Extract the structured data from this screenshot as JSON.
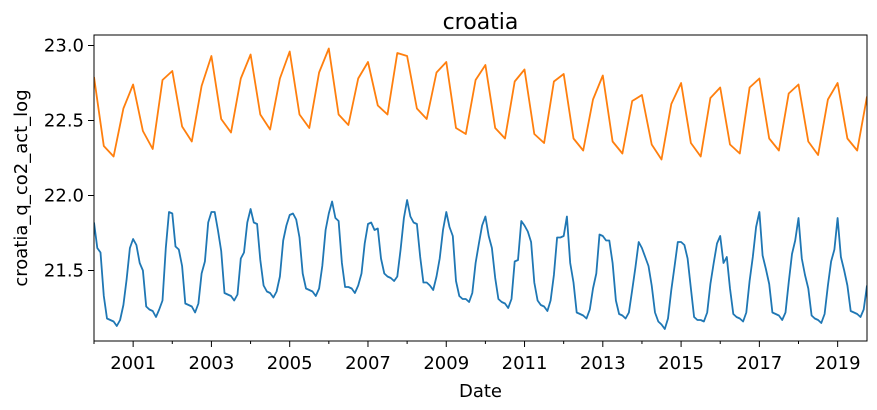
{
  "chart_data": {
    "type": "line",
    "title": "croatia",
    "xlabel": "Date",
    "ylabel": "croatia_q_co2_act_log",
    "xlim": [
      "2000-01-01",
      "2019-10-01"
    ],
    "ylim": [
      21.03,
      23.07
    ],
    "x_ticks": [
      "2001",
      "2003",
      "2005",
      "2007",
      "2009",
      "2011",
      "2013",
      "2015",
      "2017",
      "2019"
    ],
    "y_ticks": [
      "21.5",
      "22.0",
      "22.5",
      "23.0"
    ],
    "grid": false,
    "legend": "none",
    "series": [
      {
        "frequency": "monthly",
        "start": "2000-01",
        "color": "#1f77b4",
        "values": [
          21.82,
          21.65,
          21.62,
          21.33,
          21.18,
          21.17,
          21.16,
          21.13,
          21.17,
          21.27,
          21.44,
          21.65,
          21.71,
          21.67,
          21.55,
          21.5,
          21.26,
          21.24,
          21.23,
          21.19,
          21.24,
          21.3,
          21.65,
          21.89,
          21.88,
          21.66,
          21.64,
          21.53,
          21.28,
          21.27,
          21.26,
          21.22,
          21.28,
          21.48,
          21.56,
          21.82,
          21.89,
          21.89,
          21.77,
          21.63,
          21.35,
          21.34,
          21.33,
          21.3,
          21.34,
          21.58,
          21.62,
          21.82,
          21.91,
          21.82,
          21.81,
          21.57,
          21.4,
          21.36,
          21.35,
          21.32,
          21.36,
          21.46,
          21.7,
          21.8,
          21.87,
          21.88,
          21.84,
          21.72,
          21.48,
          21.38,
          21.37,
          21.36,
          21.33,
          21.38,
          21.53,
          21.77,
          21.88,
          21.96,
          21.85,
          21.83,
          21.55,
          21.39,
          21.39,
          21.38,
          21.35,
          21.4,
          21.48,
          21.68,
          21.81,
          21.82,
          21.77,
          21.78,
          21.58,
          21.48,
          21.46,
          21.45,
          21.43,
          21.46,
          21.64,
          21.85,
          21.97,
          21.86,
          21.82,
          21.81,
          21.59,
          21.42,
          21.42,
          21.4,
          21.37,
          21.46,
          21.58,
          21.77,
          21.89,
          21.79,
          21.73,
          21.43,
          21.33,
          21.31,
          21.31,
          21.29,
          21.35,
          21.55,
          21.68,
          21.8,
          21.86,
          21.73,
          21.65,
          21.45,
          21.31,
          21.29,
          21.28,
          21.25,
          21.31,
          21.56,
          21.57,
          21.83,
          21.8,
          21.76,
          21.69,
          21.42,
          21.3,
          21.27,
          21.26,
          21.23,
          21.3,
          21.47,
          21.72,
          21.72,
          21.73,
          21.86,
          21.55,
          21.42,
          21.22,
          21.21,
          21.2,
          21.18,
          21.24,
          21.38,
          21.48,
          21.74,
          21.73,
          21.7,
          21.7,
          21.55,
          21.3,
          21.21,
          21.2,
          21.18,
          21.22,
          21.37,
          21.52,
          21.69,
          21.65,
          21.59,
          21.53,
          21.4,
          21.22,
          21.16,
          21.14,
          21.11,
          21.18,
          21.37,
          21.53,
          21.69,
          21.69,
          21.67,
          21.58,
          21.38,
          21.19,
          21.17,
          21.17,
          21.16,
          21.22,
          21.41,
          21.55,
          21.68,
          21.73,
          21.55,
          21.59,
          21.38,
          21.21,
          21.19,
          21.18,
          21.16,
          21.22,
          21.43,
          21.59,
          21.79,
          21.89,
          21.6,
          21.51,
          21.41,
          21.22,
          21.21,
          21.2,
          21.17,
          21.22,
          21.42,
          21.61,
          21.7,
          21.85,
          21.58,
          21.47,
          21.38,
          21.2,
          21.18,
          21.17,
          21.15,
          21.21,
          21.4,
          21.56,
          21.64,
          21.85,
          21.59,
          21.5,
          21.4,
          21.23,
          21.22,
          21.21,
          21.19,
          21.24,
          21.4
        ]
      },
      {
        "frequency": "quarterly",
        "start": "2000-Q1",
        "color": "#ff7f0e",
        "values": [
          22.79,
          22.33,
          22.26,
          22.58,
          22.74,
          22.43,
          22.31,
          22.77,
          22.83,
          22.46,
          22.36,
          22.73,
          22.93,
          22.51,
          22.42,
          22.78,
          22.94,
          22.54,
          22.44,
          22.78,
          22.96,
          22.54,
          22.45,
          22.82,
          22.98,
          22.54,
          22.47,
          22.78,
          22.89,
          22.6,
          22.54,
          22.95,
          22.93,
          22.58,
          22.51,
          22.82,
          22.89,
          22.45,
          22.41,
          22.77,
          22.87,
          22.45,
          22.38,
          22.76,
          22.84,
          22.41,
          22.35,
          22.76,
          22.81,
          22.38,
          22.3,
          22.64,
          22.8,
          22.36,
          22.28,
          22.63,
          22.67,
          22.34,
          22.24,
          22.61,
          22.75,
          22.35,
          22.26,
          22.65,
          22.72,
          22.34,
          22.28,
          22.72,
          22.78,
          22.38,
          22.3,
          22.68,
          22.74,
          22.36,
          22.27,
          22.64,
          22.75,
          22.38,
          22.3,
          22.66
        ]
      }
    ]
  }
}
